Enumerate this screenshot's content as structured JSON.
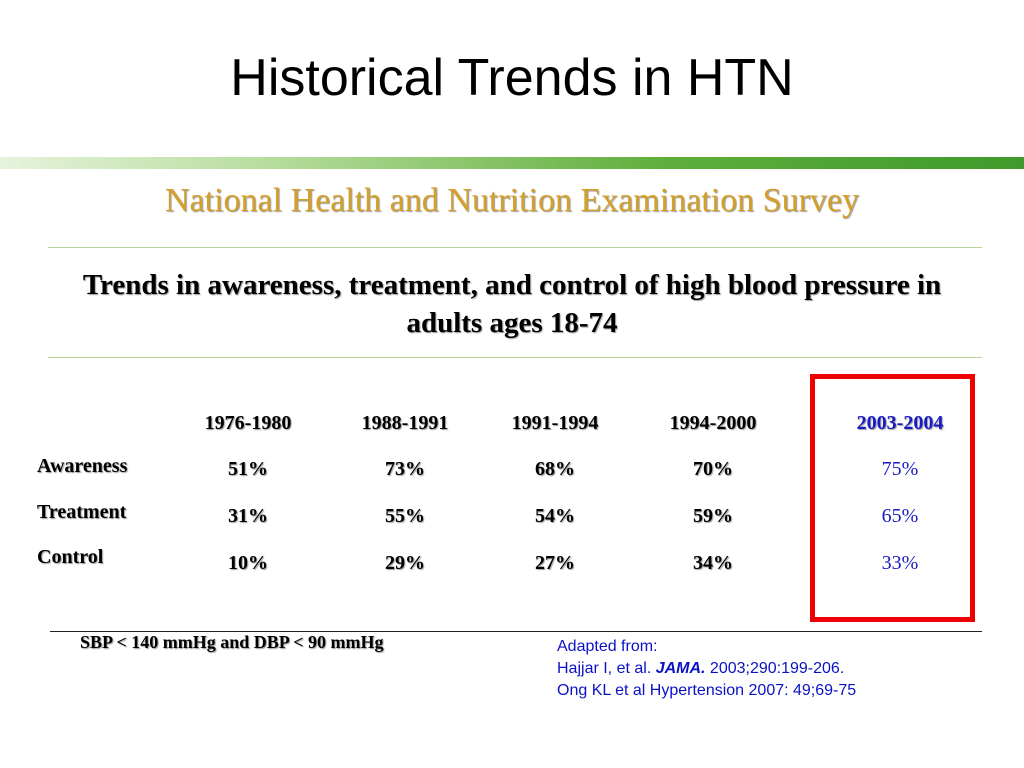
{
  "slide": {
    "title": "Historical Trends in HTN",
    "subtitle": "National Health and Nutrition Examination Survey",
    "heading": "Trends in awareness, treatment, and control of high blood pressure in adults ages 18-74"
  },
  "table": {
    "columns": [
      "1976-1980",
      "1988-1991",
      "1991-1994",
      "1994-2000",
      "2003-2004"
    ],
    "rows": [
      {
        "label": "Awareness",
        "values": [
          "51%",
          "73%",
          "68%",
          "70%",
          "75%"
        ]
      },
      {
        "label": "Treatment",
        "values": [
          "31%",
          "55%",
          "54%",
          "59%",
          "65%"
        ]
      },
      {
        "label": "Control",
        "values": [
          "10%",
          "29%",
          "27%",
          "34%",
          "33%"
        ]
      }
    ]
  },
  "footnote": "SBP < 140 mmHg and DBP < 90 mmHg",
  "citation": {
    "line1": "Adapted from:",
    "line2_prefix": "Hajjar I, et al. ",
    "line2_journal": "JAMA.",
    "line2_suffix": " 2003;290:199-206.",
    "line3": "Ong KL et al Hypertension 2007: 49;69-75"
  },
  "colors": {
    "accent_gold": "#d4a02a",
    "highlight_box": "#ee0000",
    "highlight_text": "#1a1ac4",
    "citation_text": "#0a12c4",
    "bar_green": "#3f9a2b"
  }
}
